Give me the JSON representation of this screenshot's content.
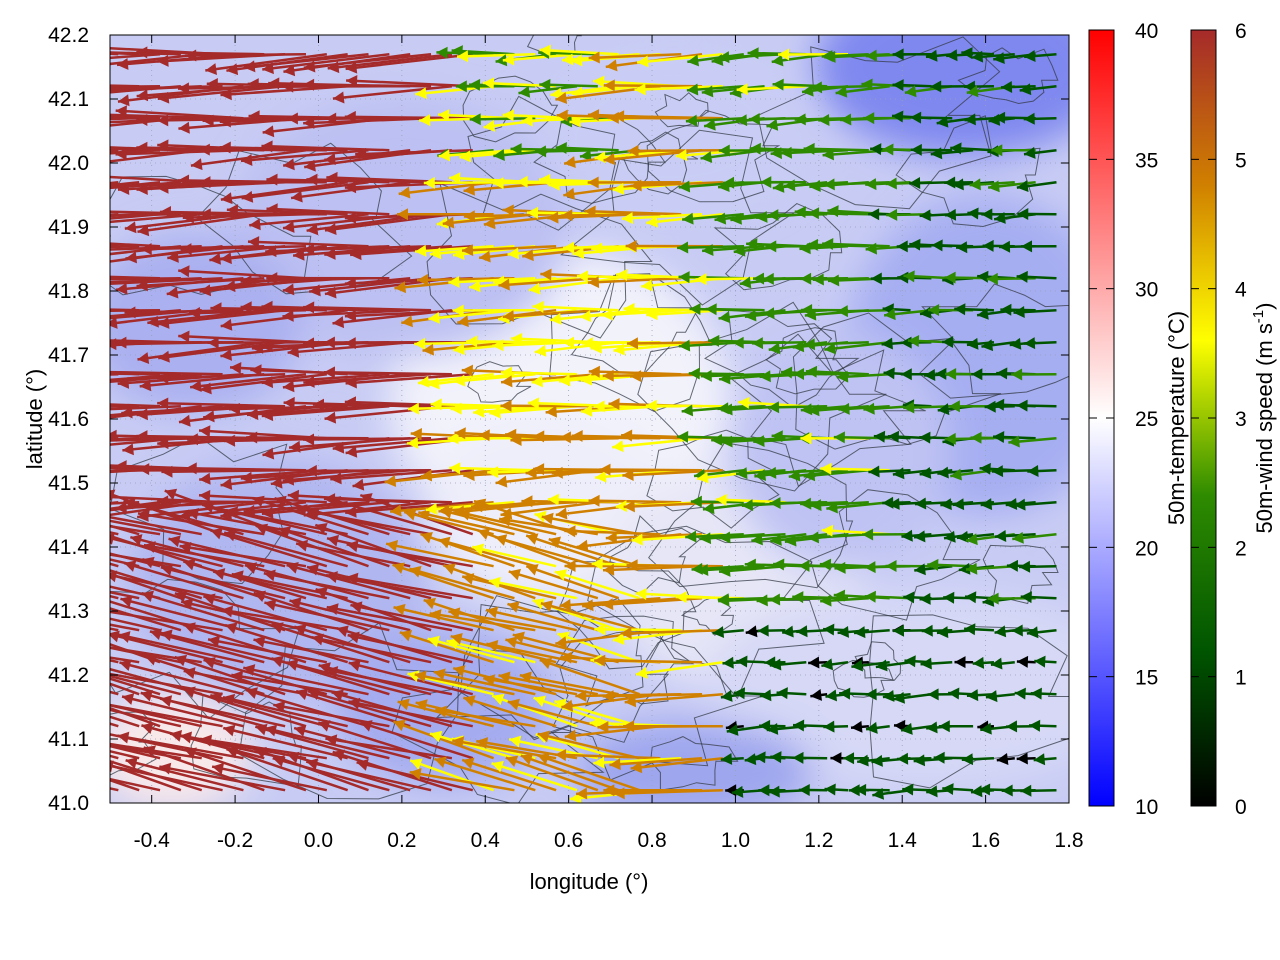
{
  "chart_data": {
    "type": "vector-field",
    "xlabel": "longitude (°)",
    "ylabel": "latitude (°)",
    "xlim": [
      -0.5,
      1.8
    ],
    "ylim": [
      41.0,
      42.2
    ],
    "xticks": [
      "-0.4",
      "-0.2",
      "0.0",
      "0.2",
      "0.4",
      "0.6",
      "0.8",
      "1.0",
      "1.2",
      "1.4",
      "1.6",
      "1.8"
    ],
    "xtick_values": [
      -0.4,
      -0.2,
      0.0,
      0.2,
      0.4,
      0.6,
      0.8,
      1.0,
      1.2,
      1.4,
      1.6,
      1.8
    ],
    "yticks": [
      "41.0",
      "41.1",
      "41.2",
      "41.3",
      "41.4",
      "41.5",
      "41.6",
      "41.7",
      "41.8",
      "41.9",
      "42.0",
      "42.1",
      "42.2"
    ],
    "ytick_values": [
      41.0,
      41.1,
      41.2,
      41.3,
      41.4,
      41.5,
      41.6,
      41.7,
      41.8,
      41.9,
      42.0,
      42.1,
      42.2
    ],
    "grid": true,
    "background_field": {
      "name": "50m-temperature (°C)",
      "colorbar_ticks": [
        "10",
        "15",
        "20",
        "25",
        "30",
        "35",
        "40"
      ],
      "colorbar_values": [
        10,
        15,
        20,
        25,
        30,
        35,
        40
      ],
      "range": [
        10,
        40
      ],
      "colors": [
        "#0000ff",
        "#ffffff",
        "#ff0000"
      ]
    },
    "vector_field": {
      "name": "50m-wind speed (m s-1)",
      "label_main": "50m-wind speed (m s",
      "label_sup": "-1",
      "label_end": ")",
      "colorbar_ticks": [
        "0",
        "1",
        "2",
        "3",
        "4",
        "5",
        "6"
      ],
      "colorbar_values": [
        0,
        1,
        2,
        3,
        4,
        5,
        6
      ],
      "range": [
        0,
        6
      ],
      "colors": [
        "#000000",
        "#005500",
        "#2e8b00",
        "#ffff00",
        "#d08000",
        "#a52a2a"
      ]
    },
    "temperature_label_main": "50m-temperature (°C)",
    "regions_wind_speed": [
      {
        "area": "west (lon -0.5 to 0.4)",
        "speed": 6
      },
      {
        "area": "center (lon 0.4 to 1.0, lat 41.6-42.0)",
        "speed": 4
      },
      {
        "area": "north center (lon 0.2 to 0.8, lat 42.0-42.2)",
        "speed": 3
      },
      {
        "area": "east (lon 1.4 to 1.8)",
        "speed": 1.5
      },
      {
        "area": "southeast (lon 1.0 to 1.8, lat 41.0-41.3)",
        "speed": 1
      }
    ]
  }
}
